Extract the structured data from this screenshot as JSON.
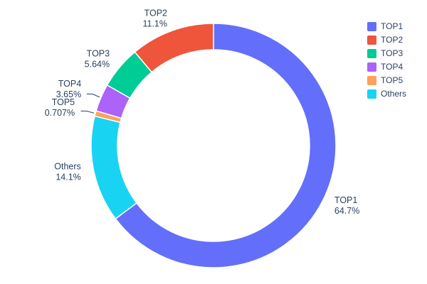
{
  "chart_data": {
    "type": "pie",
    "title": "",
    "hole": 0.785,
    "legend_position": "right",
    "labels": [
      "TOP1",
      "TOP2",
      "TOP3",
      "TOP4",
      "TOP5",
      "Others"
    ],
    "values": [
      64.7,
      11.1,
      5.64,
      3.65,
      0.707,
      14.1
    ],
    "display_percents": [
      "64.7%",
      "11.1%",
      "5.64%",
      "3.65%",
      "0.707%",
      "14.1%"
    ],
    "colors": [
      "#636EFA",
      "#EF553B",
      "#00CC96",
      "#AB63FA",
      "#FFA15A",
      "#19D3F3"
    ],
    "clockwise_order": [
      "TOP1",
      "Others",
      "TOP5",
      "TOP4",
      "TOP3",
      "TOP2"
    ],
    "text_color": "#2a3f5f",
    "background": "#ffffff"
  }
}
